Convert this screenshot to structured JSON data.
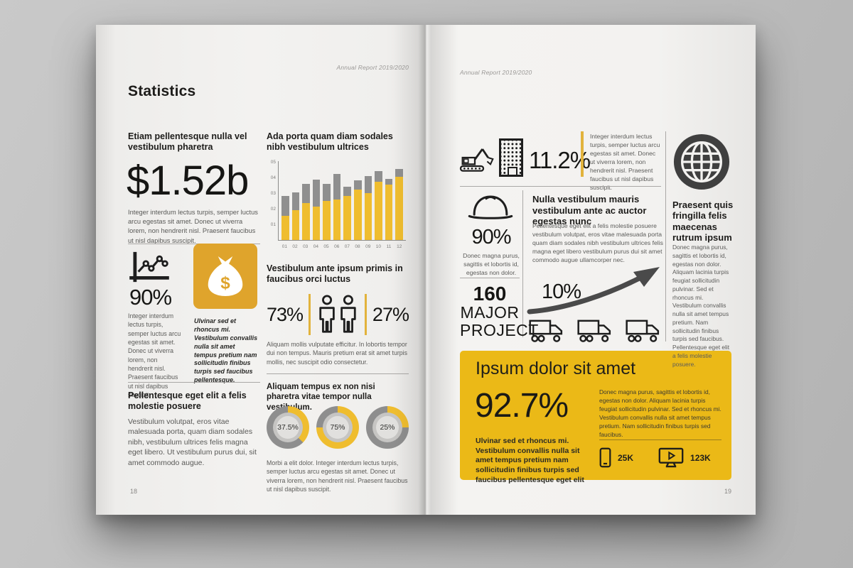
{
  "document_title": "Annual Report 2019/2020",
  "colors": {
    "bar_yellow": "#EFBD2F",
    "bar_gray": "#8E8E8E",
    "accent_yellow": "#E2B33C",
    "moneybox_yellow": "#DFA42C",
    "panel_yellow": "#EBB917",
    "icon_dark": "#1E1E1E",
    "globe_dark": "#3F3F3F"
  },
  "icons": {
    "line_chart": "line-chart-icon",
    "money_bag": "money-bag-icon",
    "people": "two-people-icon",
    "excavator": "excavator-icon",
    "building": "building-icon",
    "hard_hat": "hard-hat-icon",
    "globe": "globe-icon",
    "growth_arrow": "growth-arrow-icon",
    "truck": "truck-icon",
    "smartphone": "smartphone-icon",
    "video_monitor": "video-monitor-icon"
  },
  "left_page": {
    "header": "Annual Report 2019/2020",
    "title": "Statistics",
    "s1_heading": "Etiam pellentesque nulla vel vestibulum pharetra",
    "s1_value": "$1.52b",
    "s1_body": "Integer interdum lectus turpis, semper luctus arcu egestas sit amet. Donec ut viverra lorem, non hendrerit nisl. Praesent faucibus ut nisl dapibus suscipit.",
    "s2_value": "90%",
    "s2_body": "Integer interdum lectus turpis, semper luctus arcu egestas sit amet. Donec ut viverra lorem, non hendrerit nisl. Praesent faucibus ut nisl dapibus suscipit.",
    "s2_caption": "Ulvinar sed et rhoncus mi. Vestibulum convallis nulla sit amet tempus pretium nam sollicitudin finibus turpis sed faucibus pellentesque.",
    "chart_heading": "Ada porta quam diam sodales nibh vestibulum ultrices",
    "gender_heading": "Vestibulum ante ipsum primis in faucibus orci luctus",
    "gender_left": "73%",
    "gender_right": "27%",
    "gender_body": "Aliquam mollis vulputate efficitur. In lobortis tempor dui non tempus. Mauris pretium erat sit amet turpis mollis, nec suscipit odio consectetur.",
    "donut_heading": "Aliquam tempus ex non nisi pharetra vitae tempor nulla vestibulum.",
    "donut_body": "Morbi a elit dolor. Integer interdum lectus turpis, semper luctus arcu egestas sit amet. Donec ut viverra lorem, non hendrerit nisl. Praesent faucibus ut nisl dapibus suscipit.",
    "s5_heading": "Pellentesque eget elit a felis molestie posuere",
    "s5_body": "Vestibulum volutpat, eros vitae malesuada porta, quam diam sodales nibh, vestibulum ultrices felis magna eget libero. Ut vestibulum purus dui, sit amet commodo augue.",
    "page_number": "18"
  },
  "right_page": {
    "header": "Annual Report 2019/2020",
    "r1_value": "11.2%",
    "r1_body": "Integer interdum lectus turpis, semper luctus arcu egestas sit amet. Donec ut viverra lorem, non hendrerit nisl. Praesent faucibus ut nisl dapibus suscipit.",
    "r2_value": "90%",
    "r2_caption": "Donec magna purus, sagittis et lobortis id, egestas non dolor.",
    "r2_heading": "Nulla vestibulum mauris vestibulum ante ac auctor egestas nunc",
    "r2_body": "Pellentesque eget elit a felis molestie posuere vestibulum volutpat, eros vitae malesuada porta quam diam sodales nibh vestibulum ultrices felis magna eget libero vestibulum purus dui sit amet commodo augue ullamcorper nec.",
    "r3_value": "160",
    "r3_label1": "MAJOR",
    "r3_label2": "PROJECT",
    "r3_growth": "10%",
    "panel_title": "Ipsum dolor sit amet",
    "panel_value": "92.7%",
    "panel_caption": "Ulvinar sed et rhoncus mi. Vestibulum convallis nulla sit amet tempus pretium nam sollicitudin finibus turpis sed faucibus pellentesque eget elit",
    "panel_body": "Donec magna purus, sagittis et lobortis id, egestas non dolor. Aliquam lacinia turpis feugiat sollicitudin pulvinar. Sed et rhoncus mi. Vestibulum convallis nulla sit amet tempus pretium. Nam sollicitudin finibus turpis sed faucibus.",
    "panel_stat_phone": "25K",
    "panel_stat_video": "123K",
    "sidebar_heading": "Praesent quis fringilla felis maecenas rutrum ipsum",
    "sidebar_body": "Donec magna purus, sagittis et lobortis id, egestas non dolor. Aliquam lacinia turpis feugiat sollicitudin pulvinar. Sed et rhoncus mi. Vestibulum convallis nulla sit amet tempus pretium. Nam sollicitudin finibus turpis sed faucibus. Pellentesque eget elit a felis molestie posuere.",
    "page_number": "19"
  },
  "chart_data": [
    {
      "type": "bar",
      "stacked": true,
      "title": "Ada porta quam diam sodales nibh vestibulum ultrices",
      "categories": [
        "01",
        "02",
        "03",
        "04",
        "05",
        "06",
        "07",
        "08",
        "09",
        "10",
        "11",
        "12"
      ],
      "series": [
        {
          "name": "yellow",
          "values": [
            1.55,
            1.9,
            2.35,
            2.15,
            2.5,
            2.6,
            2.8,
            3.25,
            3.0,
            3.75,
            3.55,
            4.05
          ]
        },
        {
          "name": "gray",
          "values": [
            1.25,
            1.15,
            1.25,
            1.7,
            1.1,
            1.65,
            0.6,
            0.55,
            1.1,
            0.65,
            0.35,
            0.5
          ]
        }
      ],
      "ylim": [
        0,
        5
      ],
      "yticks": [
        "01",
        "02",
        "03",
        "04",
        "05"
      ],
      "xlabel": "",
      "ylabel": "",
      "grid": false,
      "legend": false
    },
    {
      "type": "pie",
      "subtype": "donut",
      "title": "Aliquam tempus ex non nisi pharetra vitae tempor nulla vestibulum.",
      "values": [
        37.5,
        75,
        25
      ],
      "labels": [
        "37.5%",
        "75%",
        "25%"
      ]
    }
  ]
}
